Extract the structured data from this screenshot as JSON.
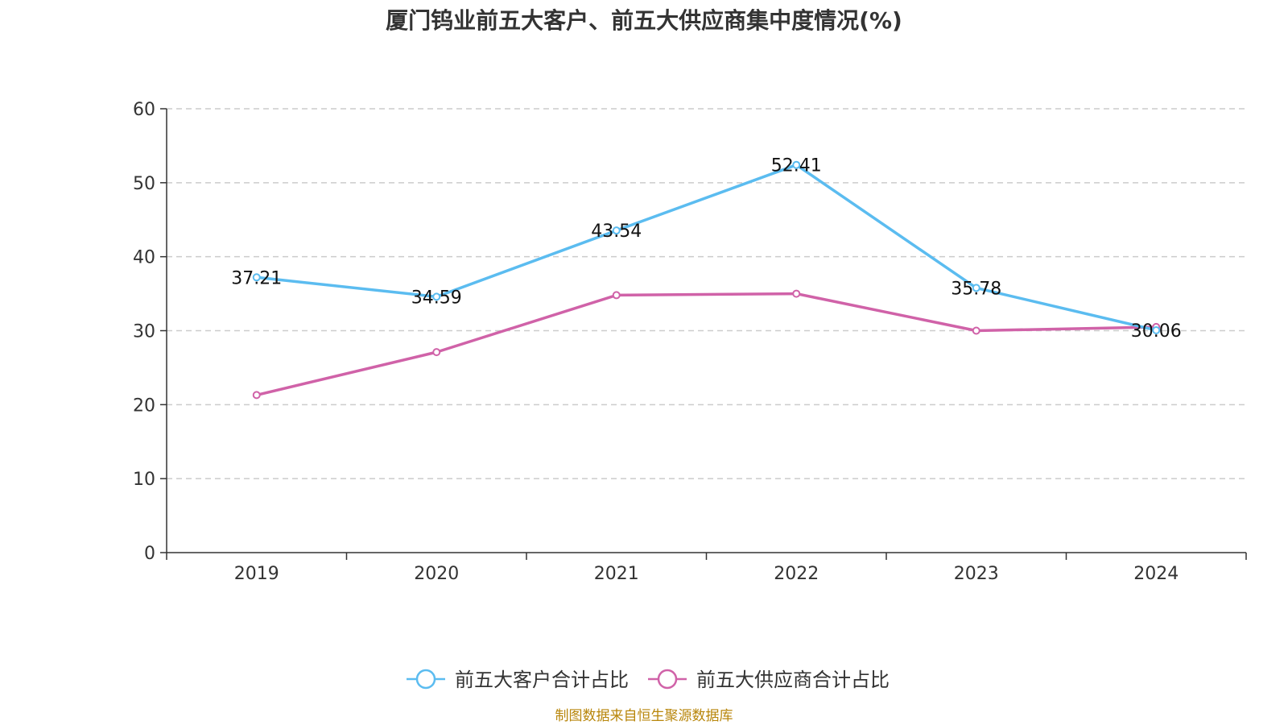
{
  "chart_data": {
    "type": "line",
    "title": "厦门钨业前五大客户、前五大供应商集中度情况(%)",
    "categories": [
      "2019",
      "2020",
      "2021",
      "2022",
      "2023",
      "2024"
    ],
    "ylim": [
      0,
      60
    ],
    "yticks": [
      0,
      10,
      20,
      30,
      40,
      50,
      60
    ],
    "grid": true,
    "legend_position": "bottom",
    "series": [
      {
        "name": "前五大客户合计占比",
        "color": "#5bbcf0",
        "values": [
          37.21,
          34.59,
          43.54,
          52.41,
          35.78,
          30.06
        ],
        "labels": [
          "37.21",
          "34.59",
          "43.54",
          "52.41",
          "35.78",
          "30.06"
        ]
      },
      {
        "name": "前五大供应商合计占比",
        "color": "#d062a8",
        "values": [
          21.3,
          27.1,
          34.8,
          35.0,
          30.0,
          30.5
        ]
      }
    ],
    "source": "制图数据来自恒生聚源数据库"
  }
}
